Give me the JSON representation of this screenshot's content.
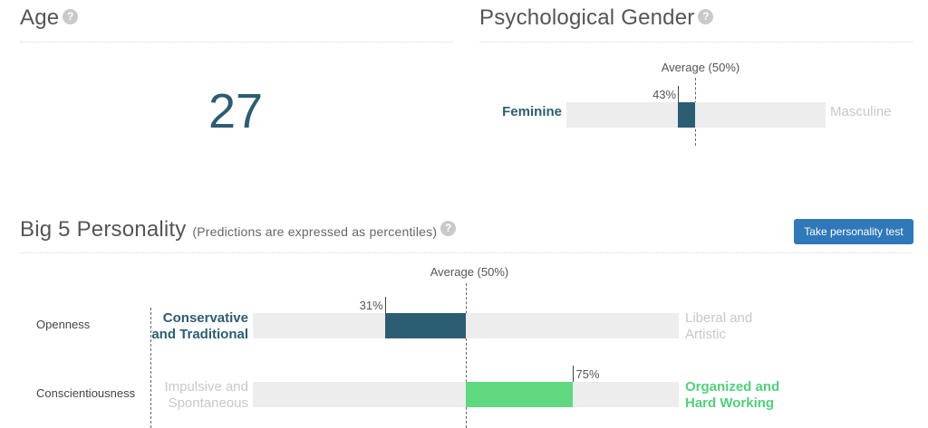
{
  "age": {
    "title": "Age",
    "help_icon": "question-circle-icon",
    "value": "27"
  },
  "gender": {
    "title": "Psychological Gender",
    "help_icon": "question-circle-icon",
    "average_label": "Average (50%)",
    "percent": 43,
    "percent_label": "43%",
    "left_pole": "Feminine",
    "right_pole": "Masculine",
    "bar_color": "#2b5d73"
  },
  "big5": {
    "title": "Big 5 Personality",
    "subtitle": "(Predictions are expressed as percentiles)",
    "help_icon": "question-circle-icon",
    "test_button": "Take personality test",
    "average_label": "Average (50%)",
    "traits": [
      {
        "name": "Openness",
        "percent": 31,
        "percent_label": "31%",
        "left_pole_line1": "Conservative",
        "left_pole_line2": "and Traditional",
        "right_pole_line1": "Liberal and",
        "right_pole_line2": "Artistic",
        "active_side": "left",
        "bar_color": "#2b5d73"
      },
      {
        "name": "Conscientiousness",
        "percent": 75,
        "percent_label": "75%",
        "left_pole_line1": "Impulsive and",
        "left_pole_line2": "Spontaneous",
        "right_pole_line1": "Organized and",
        "right_pole_line2": "Hard Working",
        "active_side": "right",
        "bar_color": "#5fd87f"
      }
    ]
  },
  "colors": {
    "accent_dark": "#2b5d73",
    "accent_green": "#5fd87f",
    "button_blue": "#2f78b9",
    "track": "#ededed"
  }
}
